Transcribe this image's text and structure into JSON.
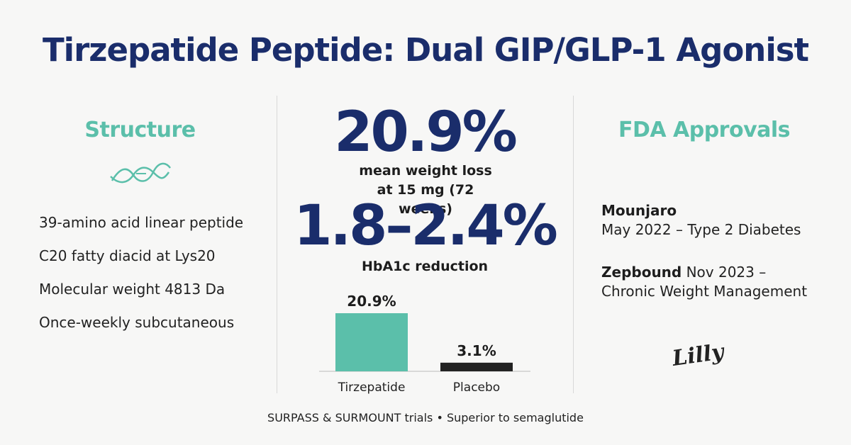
{
  "header": {
    "title": "Tirzepatide Peptide: Dual GIP/GLP-1 Agonist"
  },
  "structure": {
    "heading": "Structure",
    "items": [
      "39-amino acid linear peptide",
      "C20 fatty diacid at Lys20",
      "Molecular weight 4813 Da",
      "Once-weekly subcutaneous"
    ]
  },
  "stats": [
    {
      "value": "20.9%",
      "label": "mean weight loss at 15 mg (72 weeks)"
    },
    {
      "value": "1.8–2.4%",
      "label": "HbA1c reduction"
    }
  ],
  "chart_data": {
    "type": "bar",
    "categories": [
      "Tirzepatide",
      "Placebo"
    ],
    "values": [
      20.9,
      3.1
    ],
    "value_labels": [
      "20.9%",
      "3.1%"
    ],
    "colors": [
      "#5bbfaa",
      "#222222"
    ]
  },
  "fda": {
    "heading": "FDA Approvals",
    "approvals": [
      {
        "name": "Mounjaro",
        "text": "May 2022 – Type 2 Diabetes"
      },
      {
        "name": "Zepbound",
        "text": "Nov 2023 – Chronic Weight Management"
      }
    ]
  },
  "logo": "Lilly",
  "footer": "SURPASS & SURMOUNT trials • Superior to semaglutide"
}
